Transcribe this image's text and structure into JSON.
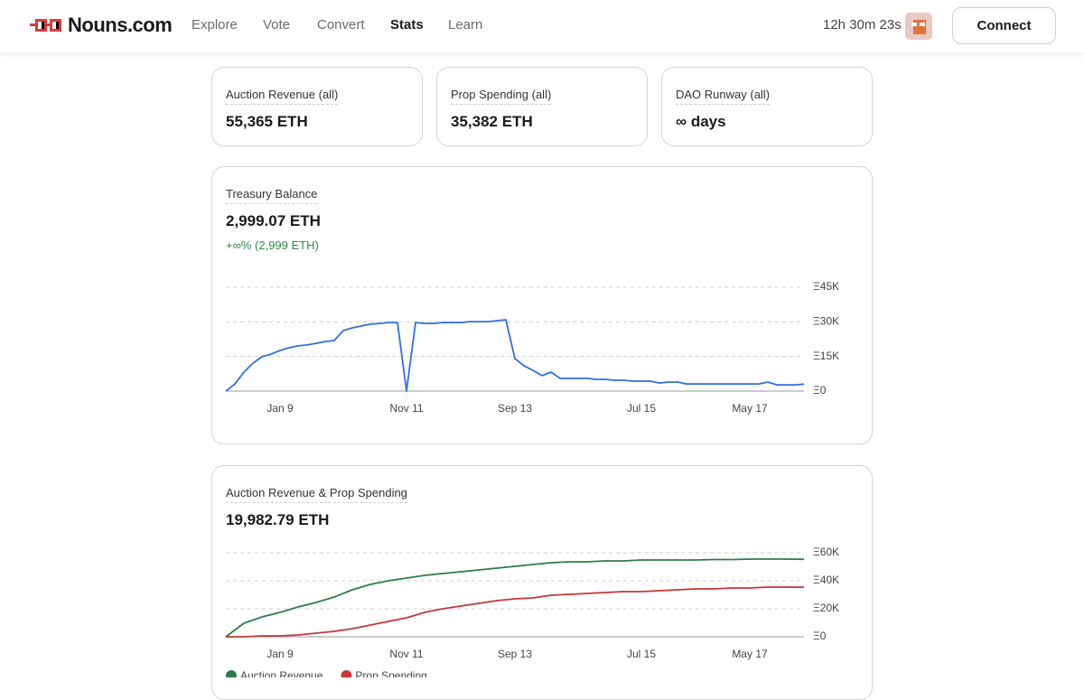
{
  "nav": {
    "brand": "Nouns.com",
    "links": [
      "Explore",
      "Vote",
      "Convert",
      "Stats",
      "Learn"
    ],
    "timer": "12h 30m 23s",
    "connect": "Connect"
  },
  "stats": [
    {
      "label": "Auction Revenue (all)",
      "value": "55,365 ETH"
    },
    {
      "label": "Prop Spending (all)",
      "value": "35,382 ETH"
    },
    {
      "label": "DAO Runway (all)",
      "value": "∞ days"
    }
  ],
  "treasury": {
    "title": "Treasury Balance",
    "value": "2,999.07 ETH",
    "change": "+∞% (2,999 ETH)",
    "chart": {
      "type": "line",
      "categories": [
        null,
        null,
        null,
        null,
        null,
        null,
        "Jan 9",
        null,
        null,
        null,
        null,
        null,
        null,
        null,
        null,
        null,
        null,
        null,
        null,
        null,
        "Nov 11",
        null,
        null,
        null,
        null,
        null,
        null,
        null,
        null,
        null,
        null,
        null,
        "Sep 13",
        null,
        null,
        null,
        null,
        null,
        null,
        null,
        null,
        null,
        null,
        null,
        null,
        null,
        "Jul 15",
        null,
        null,
        null,
        null,
        null,
        null,
        null,
        null,
        null,
        null,
        null,
        "May 17",
        null,
        null,
        null,
        null,
        null,
        null
      ],
      "series": [
        {
          "name": "Treasury Balance",
          "color": "#2f6fe4",
          "values": [
            0,
            3100,
            8200,
            12100,
            14900,
            16000,
            17600,
            18800,
            19600,
            20000,
            20700,
            21500,
            21900,
            26200,
            27400,
            28200,
            29000,
            29300,
            29700,
            29700,
            0,
            29700,
            29300,
            29300,
            29700,
            29700,
            29700,
            30100,
            30100,
            30100,
            30500,
            30900,
            14100,
            11000,
            9000,
            6700,
            8200,
            5500,
            5500,
            5500,
            5500,
            5100,
            5100,
            4700,
            4700,
            4300,
            4300,
            4300,
            3500,
            3900,
            3900,
            3100,
            3100,
            3100,
            3100,
            3100,
            3100,
            3100,
            3100,
            3100,
            3900,
            2700,
            2700,
            2700,
            2999
          ]
        }
      ],
      "ylim": [
        0,
        45000
      ],
      "yticks": [
        {
          "value": 0,
          "label": "Ξ0"
        },
        {
          "value": 15000,
          "label": "Ξ15K"
        },
        {
          "value": 30000,
          "label": "Ξ30K"
        },
        {
          "value": 45000,
          "label": "Ξ45K"
        }
      ],
      "grid": true
    }
  },
  "flows": {
    "title": "Auction Revenue & Prop Spending",
    "value": "19,982.79 ETH",
    "chart": {
      "type": "line",
      "categories": [
        null,
        null,
        null,
        "Jan 9",
        null,
        null,
        null,
        null,
        null,
        null,
        "Nov 11",
        null,
        null,
        null,
        null,
        null,
        "Sep 13",
        null,
        null,
        null,
        null,
        null,
        null,
        "Jul 15",
        null,
        null,
        null,
        null,
        null,
        "May 17",
        null,
        null,
        null
      ],
      "series": [
        {
          "name": "Auction Revenue",
          "color": "#2e7d46",
          "values": [
            0,
            9680,
            14190,
            17420,
            21290,
            24520,
            28390,
            33550,
            37420,
            40000,
            41940,
            43870,
            45160,
            46450,
            47740,
            49030,
            50320,
            51610,
            52900,
            53550,
            53550,
            54190,
            54190,
            54840,
            54840,
            54840,
            54840,
            55160,
            55160,
            55480,
            55480,
            55480,
            55365
          ]
        },
        {
          "name": "Prop Spending",
          "color": "#c8363a",
          "values": [
            0,
            0,
            650,
            650,
            1290,
            2580,
            3870,
            5810,
            8390,
            10970,
            13550,
            17420,
            20000,
            21940,
            23870,
            25810,
            27100,
            27740,
            29680,
            30320,
            30970,
            31610,
            32260,
            32260,
            32900,
            33550,
            34190,
            34190,
            34840,
            34840,
            35480,
            35480,
            35382
          ]
        }
      ],
      "ylim": [
        0,
        60000
      ],
      "yticks": [
        {
          "value": 0,
          "label": "Ξ0"
        },
        {
          "value": 20000,
          "label": "Ξ20K"
        },
        {
          "value": 40000,
          "label": "Ξ40K"
        },
        {
          "value": 60000,
          "label": "Ξ60K"
        }
      ],
      "grid": true,
      "legend": "bottom-left"
    }
  }
}
